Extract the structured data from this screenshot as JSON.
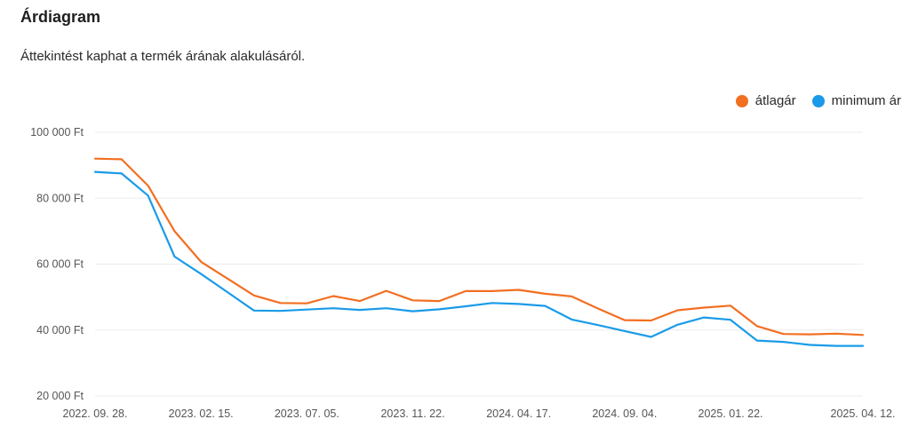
{
  "header": {
    "title": "Árdiagram",
    "subtitle": "Áttekintést kaphat a termék árának alakulásáról."
  },
  "colors": {
    "average": "#f26f21",
    "minimum": "#1a9be8",
    "grid": "#ececec"
  },
  "chart_data": {
    "type": "line",
    "title": "Árdiagram",
    "xlabel": "",
    "ylabel": "",
    "ylim": [
      20000,
      100000
    ],
    "y_ticks": [
      100000,
      80000,
      60000,
      40000,
      20000
    ],
    "y_tick_labels": [
      "100 000 Ft",
      "80 000 Ft",
      "60 000 Ft",
      "40 000 Ft",
      "20 000 Ft"
    ],
    "x_tick_labels": [
      "2022. 09. 28.",
      "2023. 02. 15.",
      "2023. 07. 05.",
      "2023. 11. 22.",
      "2024. 04. 17.",
      "2024. 09. 04.",
      "2025. 01. 22.",
      "2025. 04. 12."
    ],
    "x_tick_index": [
      0,
      4,
      8,
      12,
      16,
      20,
      24,
      29
    ],
    "legend_position": "top-right",
    "grid": true,
    "series": [
      {
        "name": "átlagár",
        "color_key": "average",
        "values": [
          92000,
          91800,
          83800,
          70000,
          60700,
          55600,
          50500,
          48200,
          48100,
          50300,
          48800,
          51900,
          49000,
          48800,
          51800,
          51800,
          52200,
          51000,
          50200,
          46500,
          43000,
          42900,
          46000,
          46800,
          47400,
          41200,
          38800,
          38700,
          38900,
          38500
        ]
      },
      {
        "name": "minimum ár",
        "color_key": "minimum",
        "values": [
          88000,
          87500,
          80800,
          62300,
          57000,
          51500,
          45900,
          45800,
          46200,
          46600,
          46100,
          46600,
          45700,
          46300,
          47200,
          48200,
          47900,
          47300,
          43200,
          41500,
          39700,
          37900,
          41600,
          43800,
          43100,
          36800,
          36400,
          35500,
          35200,
          35200
        ]
      }
    ]
  }
}
